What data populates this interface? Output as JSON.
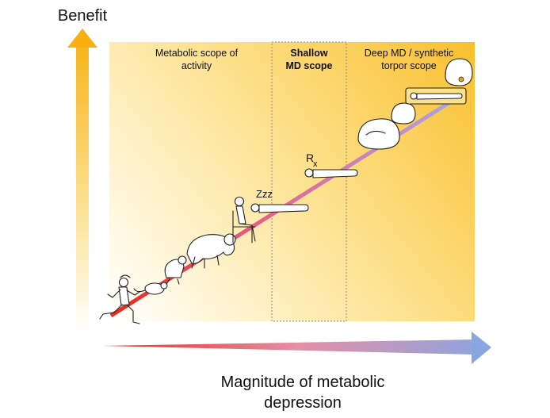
{
  "axes": {
    "y_title": "Benefit",
    "x_title_line1": "Magnitude of metabolic",
    "x_title_line2": "depression"
  },
  "regions": [
    {
      "id": "activity",
      "line1": "Metabolic scope of",
      "line2": "activity"
    },
    {
      "id": "shallow",
      "line1": "Shallow",
      "line2": "MD scope"
    },
    {
      "id": "deep",
      "line1": "Deep MD / synthetic",
      "line2": "torpor scope"
    }
  ],
  "annotations": {
    "sleep": "Zzz",
    "rx_r": "R",
    "rx_x": "x"
  },
  "states": [
    {
      "name": "running-human",
      "icon": "running-person-icon"
    },
    {
      "name": "mouse",
      "icon": "mouse-icon"
    },
    {
      "name": "small-hibernator",
      "icon": "squirrel-icon"
    },
    {
      "name": "bear",
      "icon": "bear-icon"
    },
    {
      "name": "seated-human",
      "icon": "seated-person-icon"
    },
    {
      "name": "sleeping-human",
      "icon": "sleeping-person-icon"
    },
    {
      "name": "sedated-patient",
      "icon": "patient-icon"
    },
    {
      "name": "curled-hibernator",
      "icon": "hibernating-animal-icon"
    },
    {
      "name": "torpid-small-mammal",
      "icon": "torpid-rodent-icon"
    },
    {
      "name": "synthetic-torpor-human",
      "icon": "torpor-capsule-icon"
    },
    {
      "name": "curled-dormouse",
      "icon": "dormouse-icon"
    }
  ],
  "colors": {
    "benefit_arrow_top": "#f9b416",
    "benefit_arrow_bottom": "#fff6d6",
    "gradient_low": "#ffffff",
    "gradient_high": "#f9c02f",
    "md_arrow_start": "#ec2a1f",
    "md_arrow_mid": "#e08aa0",
    "md_arrow_end": "#8fa7e0",
    "shallow_box_border": "#888888"
  }
}
